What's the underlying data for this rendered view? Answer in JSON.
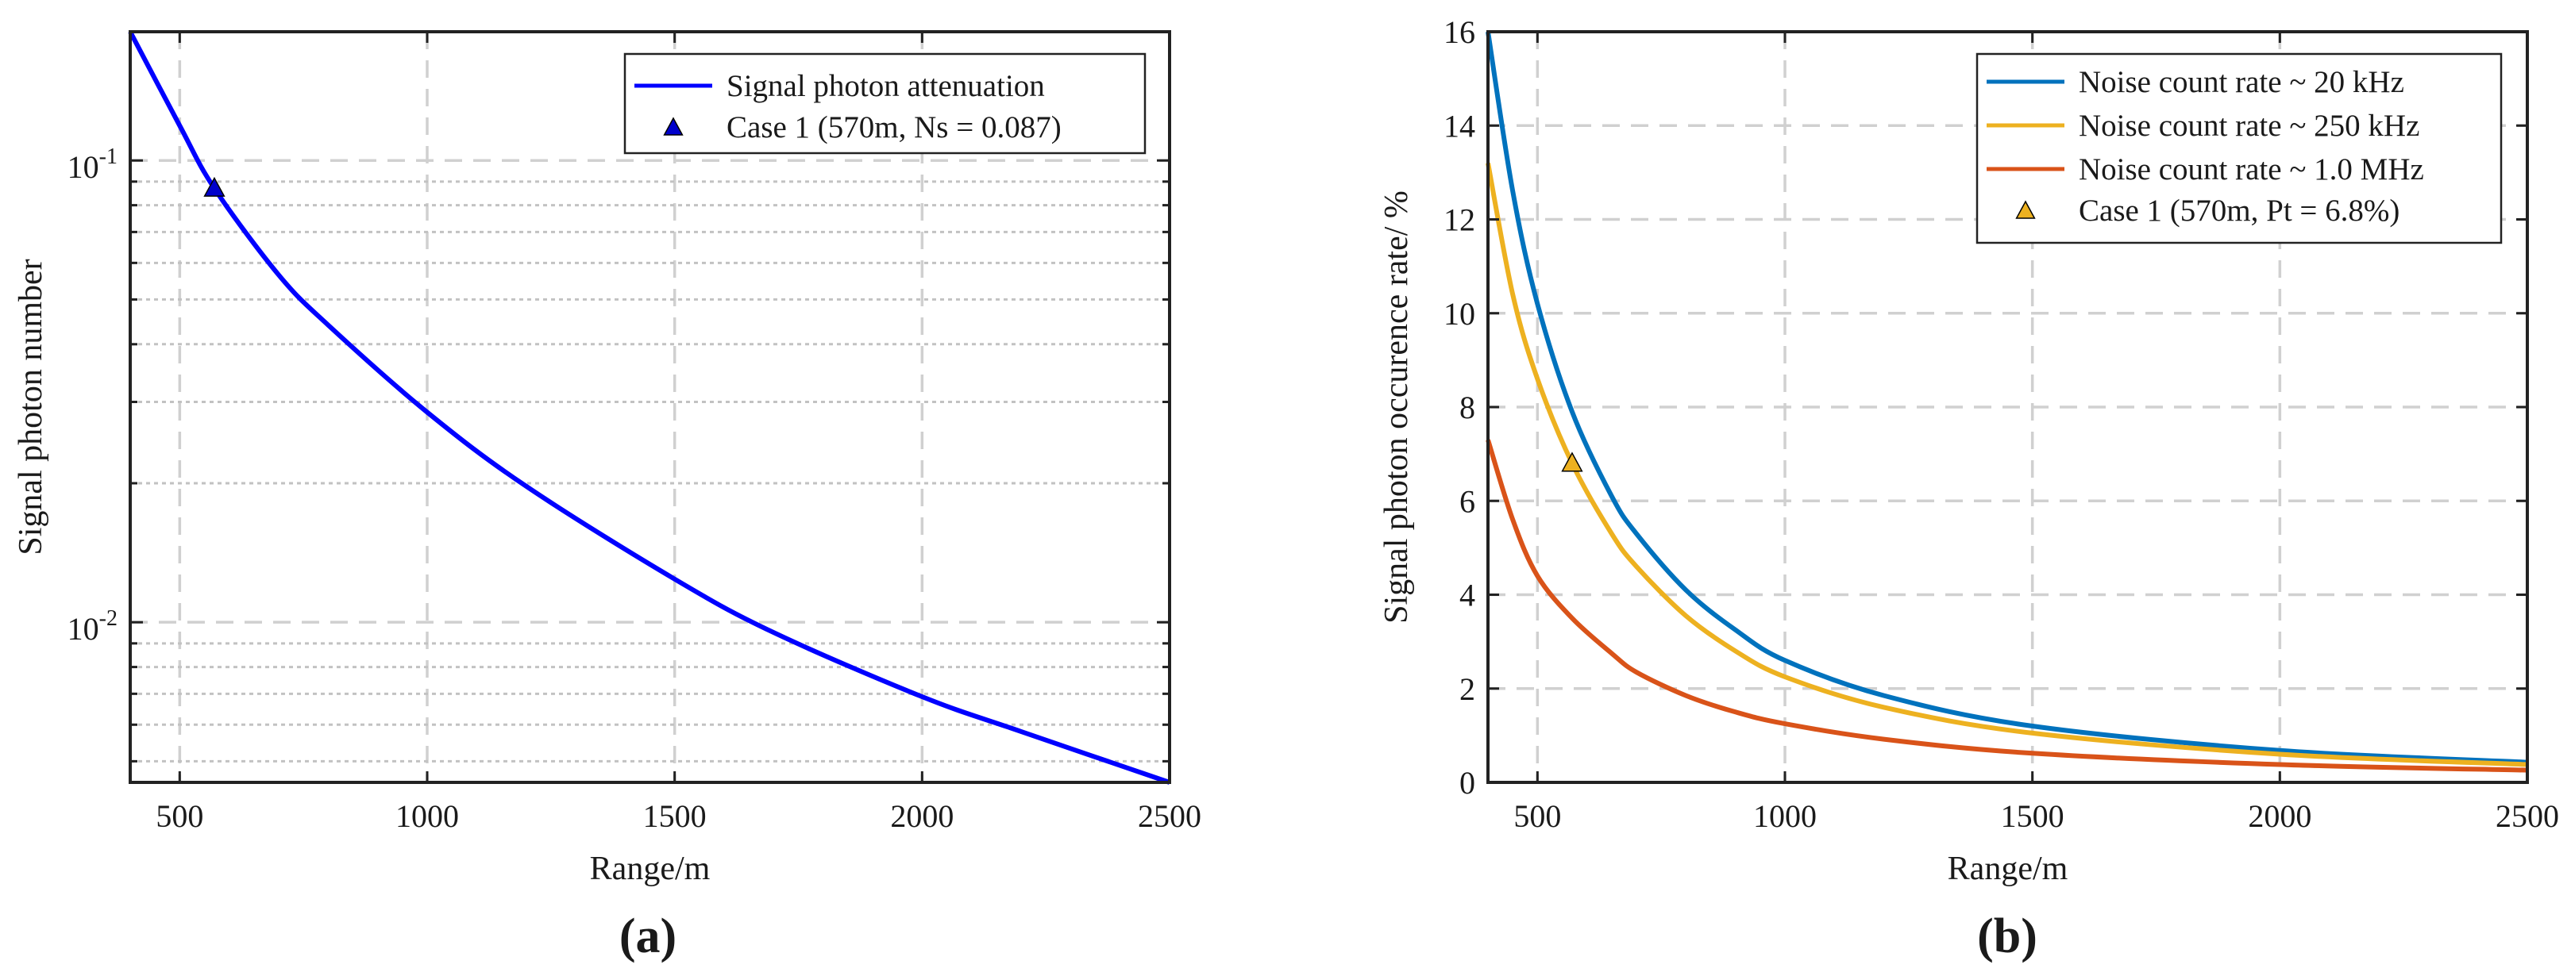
{
  "chart_data": [
    {
      "type": "line",
      "panel_label": "(a)",
      "yscale": "log",
      "xlabel": "Range/m",
      "ylabel": "Signal photon number",
      "xlim": [
        400,
        2500
      ],
      "ylim": [
        0.0045,
        0.19
      ],
      "x_ticks": [
        500,
        1000,
        1500,
        2000,
        2500
      ],
      "x_tick_labels": [
        "500",
        "1000",
        "1500",
        "2000",
        "2500"
      ],
      "y_ticks": [
        {
          "value": 0.1,
          "base": "10",
          "exp": "-1"
        },
        {
          "value": 0.01,
          "base": "10",
          "exp": "-2"
        }
      ],
      "grid": true,
      "series": [
        {
          "name": "Signal photon attenuation",
          "color": "#0000ff",
          "x": [
            400,
            500,
            570,
            700,
            800,
            1000,
            1200,
            1500,
            1700,
            2000,
            2200,
            2500
          ],
          "y": [
            0.19,
            0.119,
            0.087,
            0.0565,
            0.044,
            0.0285,
            0.0197,
            0.0124,
            0.0095,
            0.0069,
            0.0058,
            0.0045
          ]
        }
      ],
      "markers": [
        {
          "name": "Case 1 (570m, Ns = 0.087)",
          "x": 570,
          "y": 0.087,
          "shape": "triangle",
          "color": "#0000cc"
        }
      ],
      "legend": {
        "position": "top-right",
        "entries": [
          "Signal photon attenuation",
          "Case 1 (570m, Ns = 0.087)"
        ]
      }
    },
    {
      "type": "line",
      "panel_label": "(b)",
      "yscale": "linear",
      "xlabel": "Range/m",
      "ylabel": "Signal photon occurence rate/ %",
      "xlim": [
        400,
        2500
      ],
      "ylim": [
        0,
        16
      ],
      "x_ticks": [
        500,
        1000,
        1500,
        2000,
        2500
      ],
      "x_tick_labels": [
        "500",
        "1000",
        "1500",
        "2000",
        "2500"
      ],
      "y_ticks": [
        0,
        2,
        4,
        6,
        8,
        10,
        12,
        14,
        16
      ],
      "y_tick_labels": [
        "0",
        "2",
        "4",
        "6",
        "8",
        "10",
        "12",
        "14",
        "16"
      ],
      "grid": true,
      "series": [
        {
          "name": "Noise count rate ~ 20 kHz",
          "color": "#0072bd",
          "x": [
            400,
            450,
            500,
            570,
            650,
            700,
            800,
            900,
            1000,
            1200,
            1500,
            2000,
            2500
          ],
          "y": [
            16.0,
            12.6,
            10.2,
            7.9,
            6.1,
            5.3,
            4.1,
            3.25,
            2.6,
            1.85,
            1.2,
            0.68,
            0.43
          ]
        },
        {
          "name": "Noise count rate ~ 250 kHz",
          "color": "#edb120",
          "x": [
            400,
            450,
            500,
            570,
            650,
            700,
            800,
            900,
            1000,
            1200,
            1500,
            2000,
            2500
          ],
          "y": [
            13.2,
            10.4,
            8.6,
            6.8,
            5.3,
            4.6,
            3.55,
            2.8,
            2.25,
            1.6,
            1.05,
            0.6,
            0.38
          ]
        },
        {
          "name": "Noise count rate ~ 1.0 MHz",
          "color": "#d95319",
          "x": [
            400,
            450,
            500,
            570,
            650,
            700,
            800,
            900,
            1000,
            1200,
            1500,
            2000,
            2500
          ],
          "y": [
            7.3,
            5.6,
            4.4,
            3.5,
            2.75,
            2.35,
            1.85,
            1.5,
            1.25,
            0.92,
            0.62,
            0.38,
            0.26
          ]
        }
      ],
      "markers": [
        {
          "name": "Case 1 (570m, Pt = 6.8%)",
          "x": 570,
          "y": 6.8,
          "shape": "triangle",
          "color": "#edb120"
        }
      ],
      "legend": {
        "position": "top-right",
        "entries": [
          "Noise count rate ~ 20 kHz",
          "Noise count rate ~ 250 kHz",
          "Noise count rate ~ 1.0 MHz",
          "Case 1 (570m, Pt = 6.8%)"
        ]
      }
    }
  ]
}
